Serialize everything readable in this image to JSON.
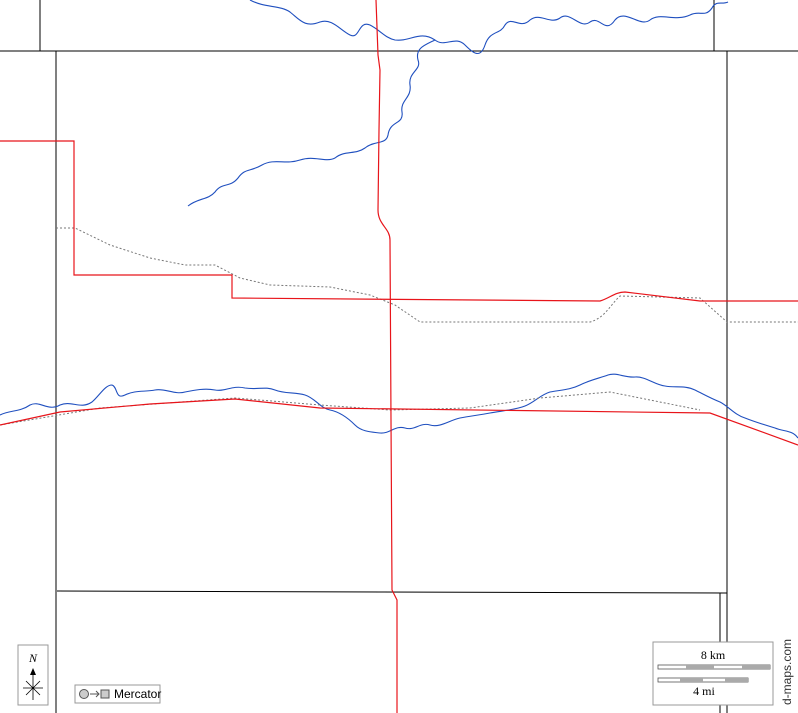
{
  "north_label": "N",
  "projection": "Mercator",
  "scale": {
    "km_label": "8 km",
    "mi_label": "4 mi"
  },
  "credit": "d-maps.com"
}
